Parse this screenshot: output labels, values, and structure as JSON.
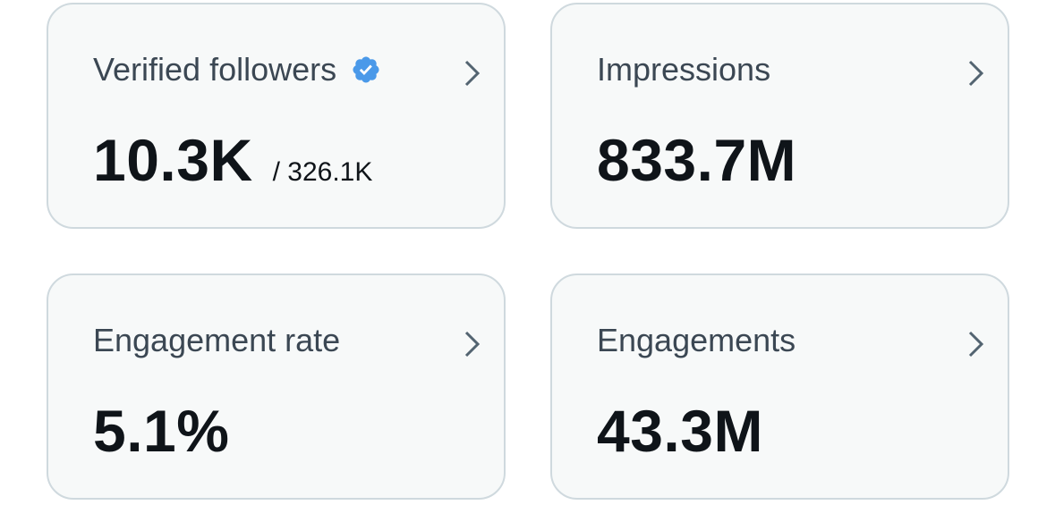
{
  "cards": [
    {
      "label": "Verified followers",
      "value": "10.3K",
      "secondary": "/ 326.1K"
    },
    {
      "label": "Impressions",
      "value": "833.7M"
    },
    {
      "label": "Engagement rate",
      "value": "5.1%"
    },
    {
      "label": "Engagements",
      "value": "43.3M"
    }
  ]
}
